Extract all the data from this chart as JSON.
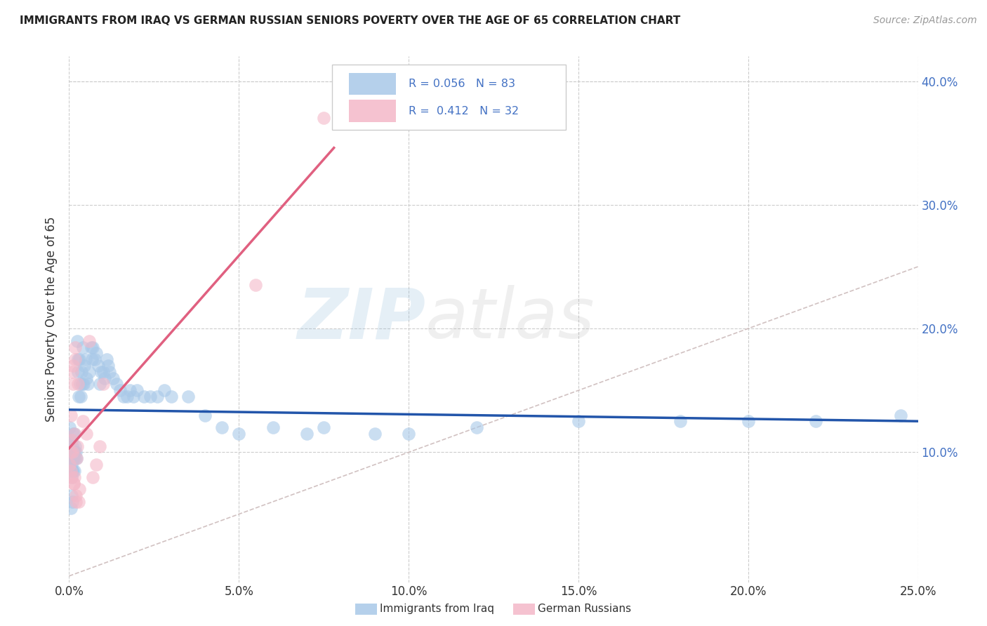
{
  "title": "IMMIGRANTS FROM IRAQ VS GERMAN RUSSIAN SENIORS POVERTY OVER THE AGE OF 65 CORRELATION CHART",
  "source": "Source: ZipAtlas.com",
  "ylabel": "Seniors Poverty Over the Age of 65",
  "xlim": [
    0.0,
    0.25
  ],
  "ylim": [
    -0.005,
    0.42
  ],
  "xticks": [
    0.0,
    0.05,
    0.1,
    0.15,
    0.2,
    0.25
  ],
  "xtick_labels": [
    "0.0%",
    "5.0%",
    "10.0%",
    "15.0%",
    "20.0%",
    "25.0%"
  ],
  "yticks": [
    0.0,
    0.1,
    0.2,
    0.3,
    0.4
  ],
  "ytick_labels": [
    "",
    "10.0%",
    "20.0%",
    "30.0%",
    "40.0%"
  ],
  "series1_name": "Immigrants from Iraq",
  "series1_color": "#a8c8e8",
  "series1_line_color": "#2255aa",
  "series1_R": 0.056,
  "series1_N": 83,
  "series2_name": "German Russians",
  "series2_color": "#f4b8c8",
  "series2_line_color": "#e06080",
  "series2_R": 0.412,
  "series2_N": 32,
  "watermark_zip": "ZIP",
  "watermark_atlas": "atlas",
  "background_color": "#ffffff",
  "grid_color": "#cccccc",
  "series1_x": [
    0.0002,
    0.0004,
    0.0005,
    0.0006,
    0.0006,
    0.0007,
    0.0008,
    0.0008,
    0.0009,
    0.001,
    0.001,
    0.0011,
    0.0012,
    0.0012,
    0.0013,
    0.0014,
    0.0015,
    0.0015,
    0.0016,
    0.0017,
    0.0018,
    0.002,
    0.0022,
    0.0024,
    0.0025,
    0.0026,
    0.0028,
    0.003,
    0.0032,
    0.0034,
    0.0036,
    0.0038,
    0.004,
    0.0042,
    0.0045,
    0.0048,
    0.005,
    0.0055,
    0.006,
    0.0065,
    0.0068,
    0.007,
    0.0075,
    0.008,
    0.0085,
    0.009,
    0.0095,
    0.01,
    0.0105,
    0.011,
    0.0115,
    0.012,
    0.013,
    0.014,
    0.015,
    0.016,
    0.017,
    0.018,
    0.019,
    0.02,
    0.022,
    0.024,
    0.026,
    0.028,
    0.03,
    0.035,
    0.04,
    0.045,
    0.05,
    0.06,
    0.07,
    0.075,
    0.09,
    0.1,
    0.12,
    0.15,
    0.18,
    0.2,
    0.22,
    0.245,
    0.0006,
    0.0007,
    0.0009
  ],
  "series1_y": [
    0.12,
    0.11,
    0.095,
    0.085,
    0.1,
    0.09,
    0.08,
    0.11,
    0.095,
    0.085,
    0.105,
    0.095,
    0.085,
    0.115,
    0.1,
    0.095,
    0.085,
    0.115,
    0.1,
    0.095,
    0.105,
    0.1,
    0.095,
    0.19,
    0.175,
    0.165,
    0.145,
    0.175,
    0.155,
    0.145,
    0.165,
    0.155,
    0.185,
    0.155,
    0.17,
    0.175,
    0.16,
    0.155,
    0.165,
    0.185,
    0.175,
    0.185,
    0.175,
    0.18,
    0.17,
    0.155,
    0.165,
    0.165,
    0.16,
    0.175,
    0.17,
    0.165,
    0.16,
    0.155,
    0.15,
    0.145,
    0.145,
    0.15,
    0.145,
    0.15,
    0.145,
    0.145,
    0.145,
    0.15,
    0.145,
    0.145,
    0.13,
    0.12,
    0.115,
    0.12,
    0.115,
    0.12,
    0.115,
    0.115,
    0.12,
    0.125,
    0.125,
    0.125,
    0.125,
    0.13,
    0.055,
    0.065,
    0.06
  ],
  "series2_x": [
    0.0002,
    0.0004,
    0.0005,
    0.0006,
    0.0007,
    0.0008,
    0.0009,
    0.001,
    0.0011,
    0.0012,
    0.0013,
    0.0014,
    0.0015,
    0.0016,
    0.0017,
    0.0018,
    0.0019,
    0.002,
    0.0022,
    0.0024,
    0.0026,
    0.0028,
    0.003,
    0.004,
    0.005,
    0.006,
    0.007,
    0.008,
    0.009,
    0.01,
    0.055,
    0.075
  ],
  "series2_y": [
    0.09,
    0.1,
    0.085,
    0.13,
    0.08,
    0.11,
    0.165,
    0.1,
    0.17,
    0.155,
    0.075,
    0.075,
    0.115,
    0.08,
    0.185,
    0.175,
    0.06,
    0.065,
    0.095,
    0.105,
    0.155,
    0.06,
    0.07,
    0.125,
    0.115,
    0.19,
    0.08,
    0.09,
    0.105,
    0.155,
    0.235,
    0.37
  ]
}
